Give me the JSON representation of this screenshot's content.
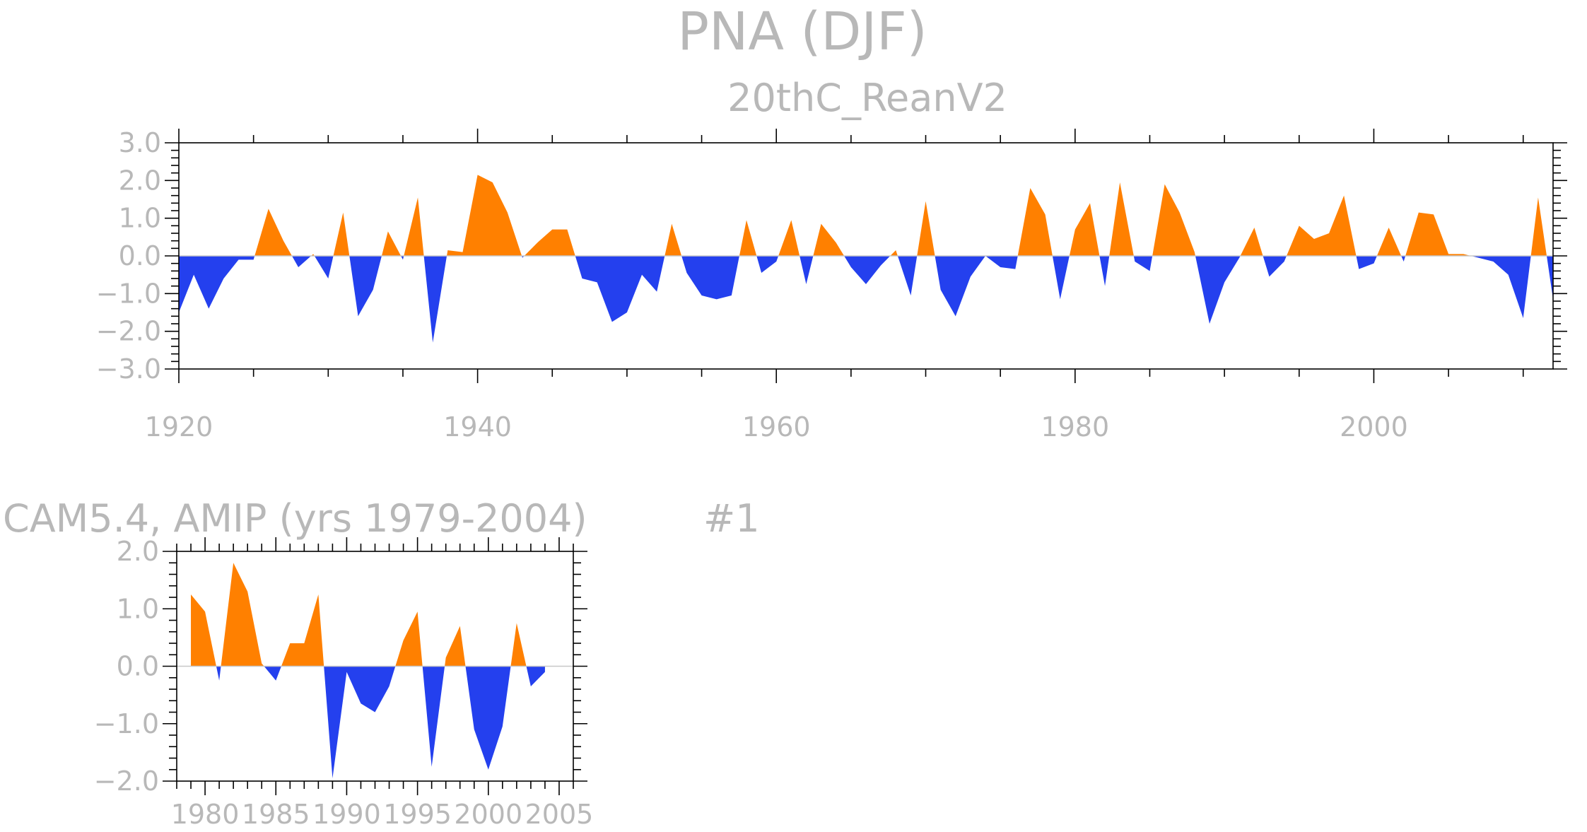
{
  "page": {
    "title": "PNA (DJF)"
  },
  "colors": {
    "positive": "#ff8000",
    "negative": "#2440ee",
    "text": "#b8b8b8",
    "axis": "#000000",
    "zero_line": "#c8c8c8"
  },
  "chart_data": [
    {
      "type": "area",
      "title": "20thC_ReanV2",
      "xlabel": "",
      "ylabel": "",
      "xlim": [
        1920,
        2012
      ],
      "ylim": [
        -3,
        3
      ],
      "x_ticks": [
        1920,
        1940,
        1960,
        1980,
        2000
      ],
      "x_tick_labels": [
        "1920",
        "1940",
        "1960",
        "1980",
        "2000"
      ],
      "y_ticks": [
        3,
        2,
        1,
        0,
        -1,
        -2,
        -3
      ],
      "y_tick_labels": [
        "3.0",
        "2.0",
        "1.0",
        "0.0",
        "−1.0",
        "−2.0",
        "−3.0"
      ],
      "x": [
        1920,
        1921,
        1922,
        1923,
        1924,
        1925,
        1926,
        1927,
        1928,
        1929,
        1930,
        1931,
        1932,
        1933,
        1934,
        1935,
        1936,
        1937,
        1938,
        1939,
        1940,
        1941,
        1942,
        1943,
        1944,
        1945,
        1946,
        1947,
        1948,
        1949,
        1950,
        1951,
        1952,
        1953,
        1954,
        1955,
        1956,
        1957,
        1958,
        1959,
        1960,
        1961,
        1962,
        1963,
        1964,
        1965,
        1966,
        1967,
        1968,
        1969,
        1970,
        1971,
        1972,
        1973,
        1974,
        1975,
        1976,
        1977,
        1978,
        1979,
        1980,
        1981,
        1982,
        1983,
        1984,
        1985,
        1986,
        1987,
        1988,
        1989,
        1990,
        1991,
        1992,
        1993,
        1994,
        1995,
        1996,
        1997,
        1998,
        1999,
        2000,
        2001,
        2002,
        2003,
        2004,
        2005,
        2006,
        2007,
        2008,
        2009,
        2010,
        2011,
        2012
      ],
      "values": [
        -1.5,
        -0.5,
        -1.4,
        -0.6,
        -0.1,
        -0.1,
        1.25,
        0.4,
        -0.3,
        0.05,
        -0.6,
        1.15,
        -1.6,
        -0.9,
        0.65,
        -0.1,
        1.55,
        -2.3,
        0.15,
        0.1,
        2.15,
        1.95,
        1.15,
        -0.05,
        0.35,
        0.7,
        0.7,
        -0.6,
        -0.7,
        -1.75,
        -1.5,
        -0.5,
        -0.95,
        0.85,
        -0.45,
        -1.05,
        -1.15,
        -1.05,
        0.95,
        -0.45,
        -0.15,
        0.95,
        -0.75,
        0.85,
        0.35,
        -0.3,
        -0.75,
        -0.25,
        0.15,
        -1.05,
        1.45,
        -0.9,
        -1.6,
        -0.55,
        0.0,
        -0.3,
        -0.35,
        1.8,
        1.1,
        -1.15,
        0.7,
        1.4,
        -0.8,
        1.95,
        -0.15,
        -0.4,
        1.9,
        1.15,
        0.1,
        -1.8,
        -0.7,
        -0.05,
        0.75,
        -0.55,
        -0.15,
        0.8,
        0.45,
        0.6,
        1.6,
        -0.35,
        -0.2,
        0.75,
        -0.15,
        1.15,
        1.1,
        0.05,
        0.05,
        -0.05,
        -0.15,
        -0.5,
        -1.65,
        1.55,
        -1.15
      ]
    },
    {
      "type": "area",
      "title": "CAM5.4, AMIP (yrs 1979-2004)",
      "annotation": "#1",
      "xlabel": "",
      "ylabel": "",
      "xlim": [
        1978,
        2006
      ],
      "ylim": [
        -2,
        2
      ],
      "x_ticks": [
        1980,
        1985,
        1990,
        1995,
        2000,
        2005
      ],
      "x_tick_labels": [
        "1980",
        "1985",
        "1990",
        "1995",
        "2000",
        "2005"
      ],
      "y_ticks": [
        2,
        1,
        0,
        -1,
        -2
      ],
      "y_tick_labels": [
        "2.0",
        "1.0",
        "0.0",
        "−1.0",
        "−2.0"
      ],
      "x": [
        1979,
        1980,
        1981,
        1982,
        1983,
        1984,
        1985,
        1986,
        1987,
        1988,
        1989,
        1990,
        1991,
        1992,
        1993,
        1994,
        1995,
        1996,
        1997,
        1998,
        1999,
        2000,
        2001,
        2002,
        2003,
        2004
      ],
      "values": [
        1.25,
        0.95,
        -0.25,
        1.8,
        1.3,
        0.05,
        -0.25,
        0.4,
        0.4,
        1.25,
        -1.95,
        -0.1,
        -0.65,
        -0.8,
        -0.35,
        0.45,
        0.95,
        -1.75,
        0.15,
        0.7,
        -1.1,
        -1.8,
        -1.05,
        0.75,
        -0.35,
        -0.1
      ]
    }
  ]
}
